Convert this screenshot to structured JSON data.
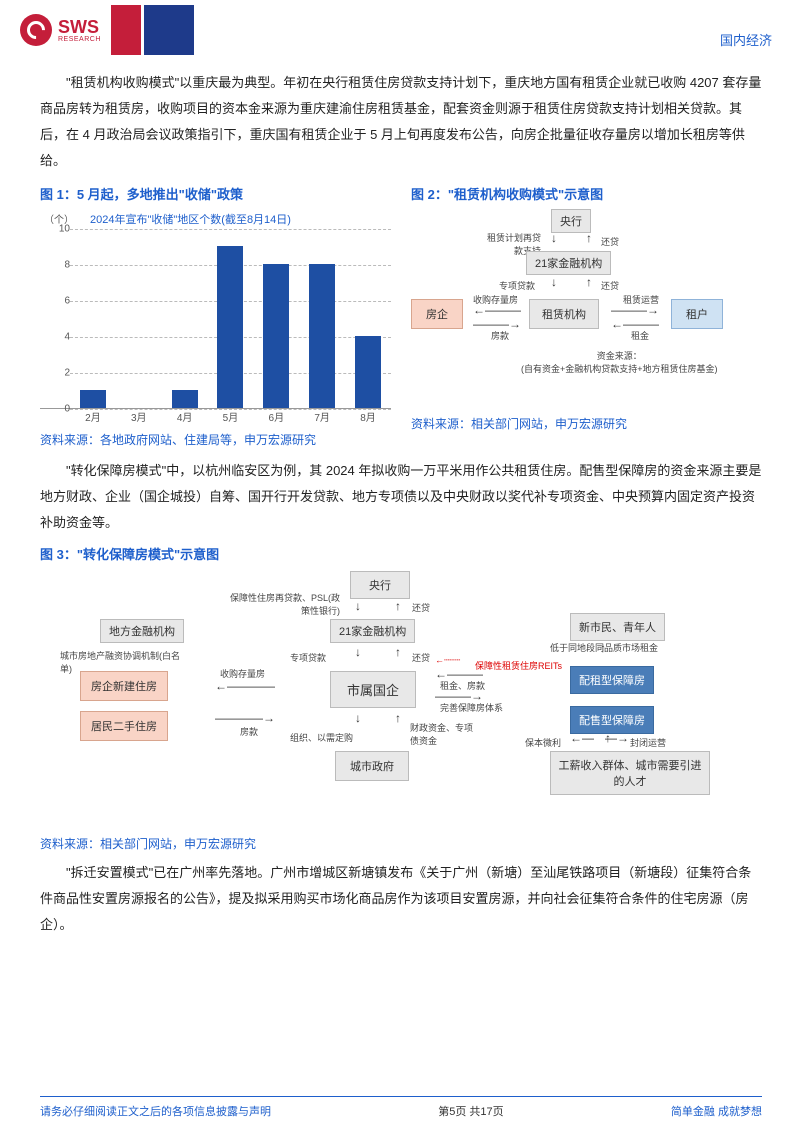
{
  "header": {
    "brand": "SWS",
    "brand_sub": "RESEARCH",
    "top_right": "国内经济"
  },
  "intro": "\"租赁机构收购模式\"以重庆最为典型。年初在央行租赁住房贷款支持计划下，重庆地方国有租赁企业就已收购 4207 套存量商品房转为租赁房，收购项目的资本金来源为重庆建渝住房租赁基金，配套资金则源于租赁住房贷款支持计划相关贷款。其后，在 4 月政治局会议政策指引下，重庆国有租赁企业于 5 月上旬再度发布公告，向房企批量征收存量房以增加长租房等供给。",
  "fig1": {
    "title": "图 1：5 月起，多地推出\"收储\"政策",
    "series_label": "2024年宣布\"收储\"地区个数(截至8月14日)",
    "y_unit": "（个）",
    "ymax": 10,
    "ytick": 2,
    "categories": [
      "2月",
      "3月",
      "4月",
      "5月",
      "6月",
      "7月",
      "8月"
    ],
    "values": [
      1,
      0,
      1,
      9,
      8,
      8,
      4
    ],
    "bar_color": "#1e4fa3",
    "source": "资料来源：各地政府网站、住建局等，申万宏源研究"
  },
  "fig2": {
    "title": "图 2：\"租赁机构收购模式\"示意图",
    "nodes": {
      "yanghang": "央行",
      "jinrong": "21家金融机构",
      "fangqi": "房企",
      "zulin": "租赁机构",
      "zuhu": "租户"
    },
    "labels": {
      "l1": "租赁计划再贷款支持",
      "l2": "还贷",
      "l3": "专项贷款",
      "l4": "还贷",
      "l5": "收购存量房",
      "l6": "房款",
      "l7": "租赁运营",
      "l8": "租金",
      "src": "资金来源：\n(自有资金+金融机构贷款支持+地方租赁住房基金)"
    },
    "source": "资料来源：相关部门网站，申万宏源研究"
  },
  "mid_para": "\"转化保障房模式\"中，以杭州临安区为例，其 2024 年拟收购一万平米用作公共租赁住房。配售型保障房的资金来源主要是地方财政、企业（国企城投）自筹、国开行开发贷款、地方专项债以及中央财政以奖代补专项资金、中央预算内固定资产投资补助资金等。",
  "fig3": {
    "title": "图 3：\"转化保障房模式\"示意图",
    "nodes": {
      "yanghang": "央行",
      "jinrong": "21家金融机构",
      "difang": "地方金融机构",
      "xinjian": "房企新建住房",
      "ershou": "居民二手住房",
      "shiguo": "市属国企",
      "chengshi": "城市政府",
      "xinshimin": "新市民、青年人",
      "peizu": "配租型保障房",
      "peishou": "配售型保障房",
      "gongxin": "工薪收入群体、城市需要引进的人才"
    },
    "labels": {
      "a": "保障性住房再贷款、PSL(政策性银行)",
      "b": "还贷",
      "c": "专项贷款",
      "d": "还贷",
      "e": "城市房地产融资协调机制(白名单)",
      "f": "收购存量房",
      "g": "房款",
      "h": "组织、以需定购",
      "i": "财政资金、专项债资金",
      "j": "租金、房款",
      "k": "低于同地段同品质市场租金",
      "l": "保障性租赁住房REITs",
      "m": "完善保障房体系",
      "n": "保本微利",
      "o": "封闭运营"
    },
    "source": "资料来源：相关部门网站，申万宏源研究"
  },
  "end_para": "\"拆迁安置模式\"已在广州率先落地。广州市增城区新塘镇发布《关于广州（新塘）至汕尾铁路项目（新塘段）征集符合条件商品性安置房源报名的公告》，提及拟采用购买市场化商品房作为该项目安置房源，并向社会征集符合条件的住宅房源（房企）。",
  "footer": {
    "left": "请务必仔细阅读正文之后的各项信息披露与声明",
    "mid": "第5页 共17页",
    "right": "简单金融 成就梦想"
  }
}
